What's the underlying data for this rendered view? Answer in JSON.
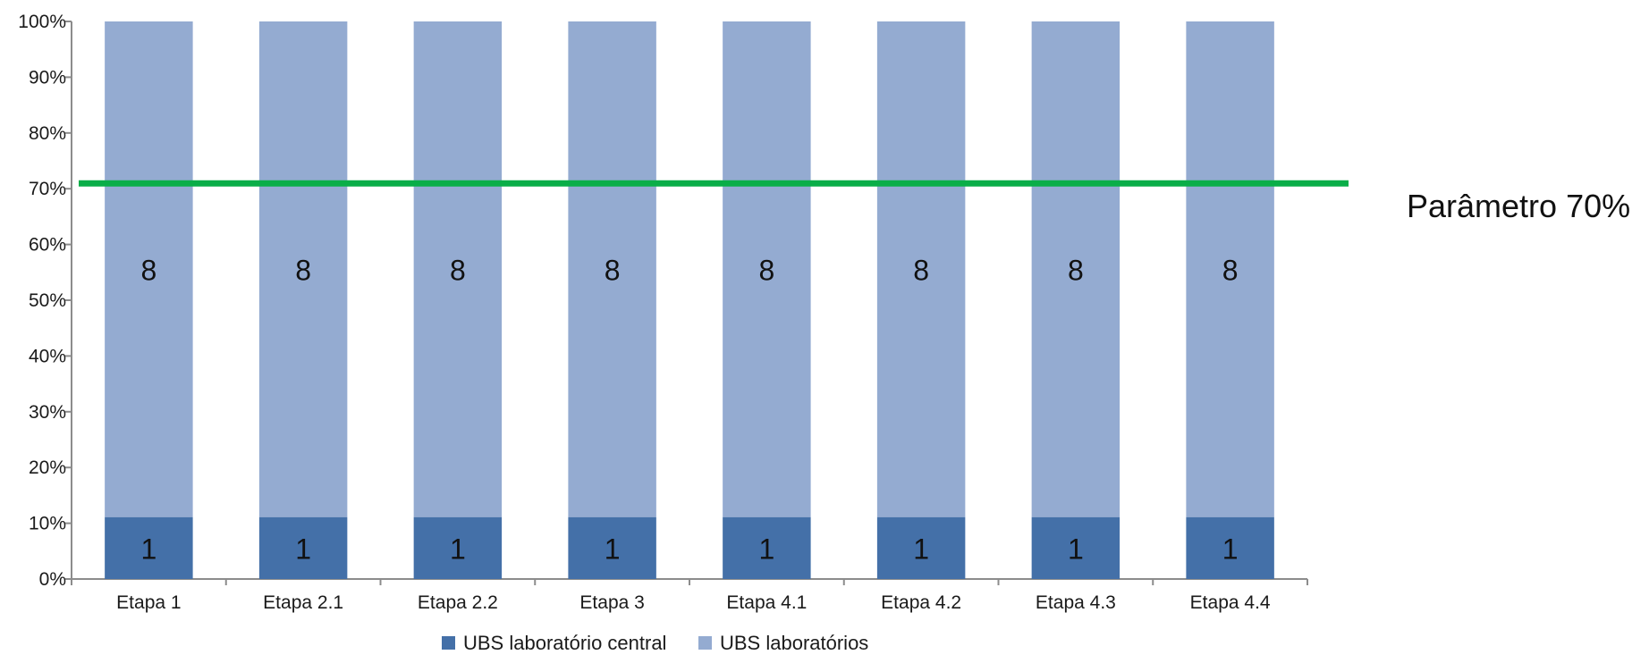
{
  "chart_data": {
    "type": "bar",
    "stacked": true,
    "percent_stacked": true,
    "categories": [
      "Etapa 1",
      "Etapa 2.1",
      "Etapa 2.2",
      "Etapa 3",
      "Etapa 4.1",
      "Etapa 4.2",
      "Etapa 4.3",
      "Etapa 4.4"
    ],
    "series": [
      {
        "name": "UBS laboratório central",
        "color": "#4470A8",
        "values": [
          1,
          1,
          1,
          1,
          1,
          1,
          1,
          1
        ]
      },
      {
        "name": "UBS laboratórios",
        "color": "#94ABD1",
        "values": [
          8,
          8,
          8,
          8,
          8,
          8,
          8,
          8
        ]
      }
    ],
    "ylim": [
      0,
      100
    ],
    "y_ticks": [
      "0%",
      "10%",
      "20%",
      "30%",
      "40%",
      "50%",
      "60%",
      "70%",
      "80%",
      "90%",
      "100%"
    ],
    "reference_line": {
      "value": 70,
      "label": "Parâmetro 70%",
      "color": "#0AAE48"
    },
    "legend_position": "bottom",
    "grid": false
  }
}
